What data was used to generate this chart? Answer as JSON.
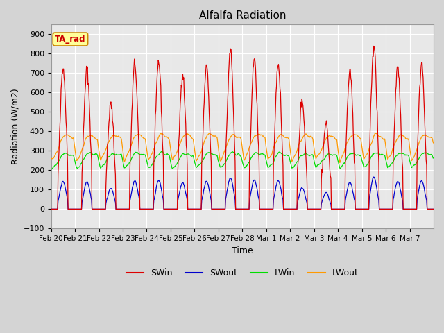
{
  "title": "Alfalfa Radiation",
  "xlabel": "Time",
  "ylabel": "Radiation (W/m2)",
  "ylim": [
    -100,
    950
  ],
  "yticks": [
    -100,
    0,
    100,
    200,
    300,
    400,
    500,
    600,
    700,
    800,
    900
  ],
  "fig_bg_color": "#d4d4d4",
  "plot_bg_color": "#e8e8e8",
  "grid_color": "white",
  "colors": {
    "SWin": "#dd0000",
    "SWout": "#0000cc",
    "LWin": "#00dd00",
    "LWout": "#ff9900"
  },
  "annotation_box": {
    "text": "TA_rad",
    "facecolor": "#ffff99",
    "edgecolor": "#cc8800",
    "textcolor": "#cc0000"
  },
  "n_days": 16,
  "sw_peaks": [
    730,
    720,
    540,
    750,
    760,
    700,
    730,
    820,
    775,
    750,
    560,
    440,
    715,
    840,
    735,
    755
  ],
  "x_labels": [
    "Feb 20",
    "Feb 21",
    "Feb 22",
    "Feb 23",
    "Feb 24",
    "Feb 25",
    "Feb 26",
    "Feb 27",
    "Feb 28",
    "Mar 1",
    "Mar 2",
    "Mar 3",
    "Mar 4",
    "Mar 5",
    "Mar 6",
    "Mar 7"
  ],
  "legend_labels": [
    "SWin",
    "SWout",
    "LWin",
    "LWout"
  ],
  "figsize": [
    6.4,
    4.8
  ],
  "dpi": 100
}
